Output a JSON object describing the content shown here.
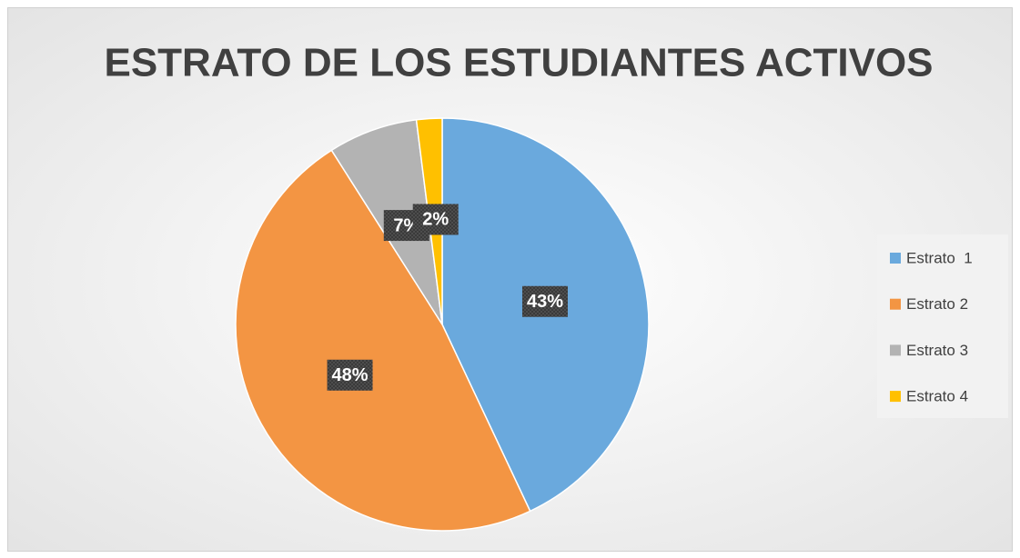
{
  "chart_data": {
    "type": "pie",
    "title": "ESTRATO DE LOS ESTUDIANTES ACTIVOS",
    "categories": [
      "Estrato  1",
      "Estrato 2",
      "Estrato 3",
      "Estrato 4"
    ],
    "values": [
      43,
      48,
      7,
      2
    ],
    "value_labels": [
      "43%",
      "48%",
      "7%",
      "2%"
    ],
    "colors": [
      "#6aa9dd",
      "#f39543",
      "#b3b3b3",
      "#ffc000"
    ],
    "legend": "right"
  }
}
